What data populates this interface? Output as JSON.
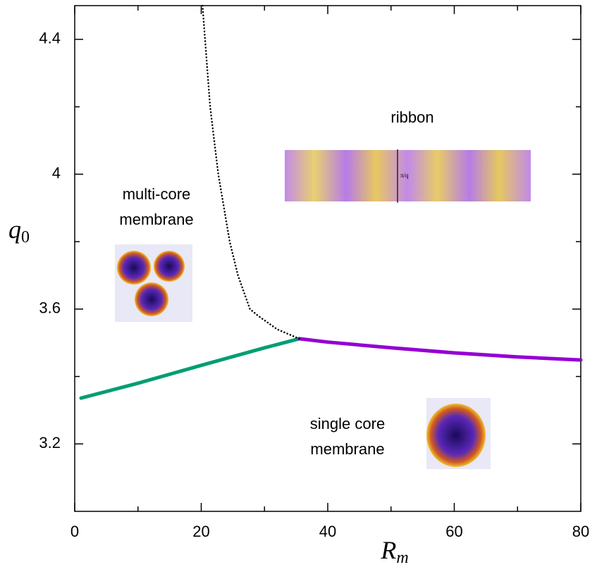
{
  "chart_data": {
    "type": "line",
    "xlabel": "R",
    "xlabel_sub": "m",
    "ylabel": "q",
    "ylabel_sub": "0",
    "xlim": [
      0,
      80
    ],
    "ylim": [
      3.0,
      4.5
    ],
    "xticks": [
      0,
      20,
      40,
      60,
      80
    ],
    "yticks": [
      3.2,
      3.6,
      4,
      4.4
    ],
    "x_minor_ticks": [
      10,
      30,
      50,
      70
    ],
    "y_minor_ticks": [
      3.4,
      3.8,
      4.2
    ],
    "series": [
      {
        "color": "#009e73",
        "style": "solid",
        "x": [
          1,
          10,
          20,
          30,
          35.5
        ],
        "values": [
          3.336,
          3.38,
          3.433,
          3.485,
          3.512
        ]
      },
      {
        "color": "#9400d3",
        "style": "solid",
        "x": [
          35.5,
          40,
          50,
          60,
          70,
          80
        ],
        "values": [
          3.512,
          3.502,
          3.485,
          3.47,
          3.458,
          3.449
        ]
      },
      {
        "color": "#000000",
        "style": "dotted",
        "x": [
          35.5,
          32,
          29,
          27.7,
          25.8,
          24.5,
          22.7,
          21.4,
          20.2
        ],
        "values": [
          3.512,
          3.54,
          3.58,
          3.6,
          3.7,
          3.8,
          4.0,
          4.2,
          4.5
        ]
      }
    ],
    "region_labels": [
      [
        "ribbon"
      ],
      [
        "multi-core",
        "membrane"
      ],
      [
        "single core",
        "membrane"
      ]
    ],
    "ribbon_scale_label": "π/q"
  }
}
